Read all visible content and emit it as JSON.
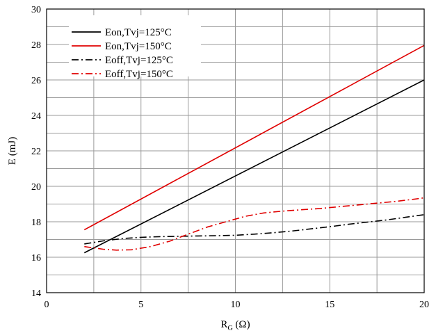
{
  "chart_data": {
    "type": "line",
    "title": "",
    "xlabel": "R",
    "xlabel_sub": "G",
    "xlabel_unit": " (Ω)",
    "ylabel": "E (mJ)",
    "xlim": [
      0,
      20
    ],
    "ylim": [
      14,
      30
    ],
    "xticks": [
      0,
      5,
      10,
      15,
      20
    ],
    "yticks": [
      14,
      16,
      18,
      20,
      22,
      24,
      26,
      28,
      30
    ],
    "x_grid_step": 2.5,
    "y_grid_step": 1,
    "grid": true,
    "legend_position": "top-left",
    "series": [
      {
        "name": "Eon,Tvj=125°C",
        "color": "#000000",
        "style": "solid",
        "x": [
          2,
          20
        ],
        "y": [
          16.25,
          26.0
        ]
      },
      {
        "name": "Eon,Tvj=150°C",
        "color": "#e00000",
        "style": "solid",
        "x": [
          2,
          20
        ],
        "y": [
          17.55,
          27.95
        ]
      },
      {
        "name": "Eoff,Tvj=125°C",
        "color": "#000000",
        "style": "dashdot",
        "x": [
          2,
          3,
          4,
          5,
          6,
          7,
          8,
          9,
          10,
          11,
          12,
          13,
          14,
          15,
          16,
          17,
          18,
          19,
          20
        ],
        "y": [
          16.75,
          16.92,
          17.05,
          17.12,
          17.16,
          17.18,
          17.2,
          17.21,
          17.24,
          17.3,
          17.38,
          17.48,
          17.6,
          17.72,
          17.86,
          17.98,
          18.1,
          18.25,
          18.4
        ]
      },
      {
        "name": "Eoff,Tvj=150°C",
        "color": "#e00000",
        "style": "dashdot",
        "x": [
          2,
          3,
          3.7,
          4.5,
          5.5,
          6.5,
          7.5,
          8.5,
          9.5,
          10.5,
          11.5,
          12.5,
          13.5,
          14.5,
          15.5,
          16.5,
          17.5,
          18.5,
          19.5,
          20
        ],
        "y": [
          16.6,
          16.45,
          16.4,
          16.42,
          16.6,
          16.9,
          17.3,
          17.7,
          18.0,
          18.3,
          18.5,
          18.6,
          18.68,
          18.75,
          18.85,
          18.95,
          19.05,
          19.15,
          19.28,
          19.35
        ]
      }
    ]
  }
}
